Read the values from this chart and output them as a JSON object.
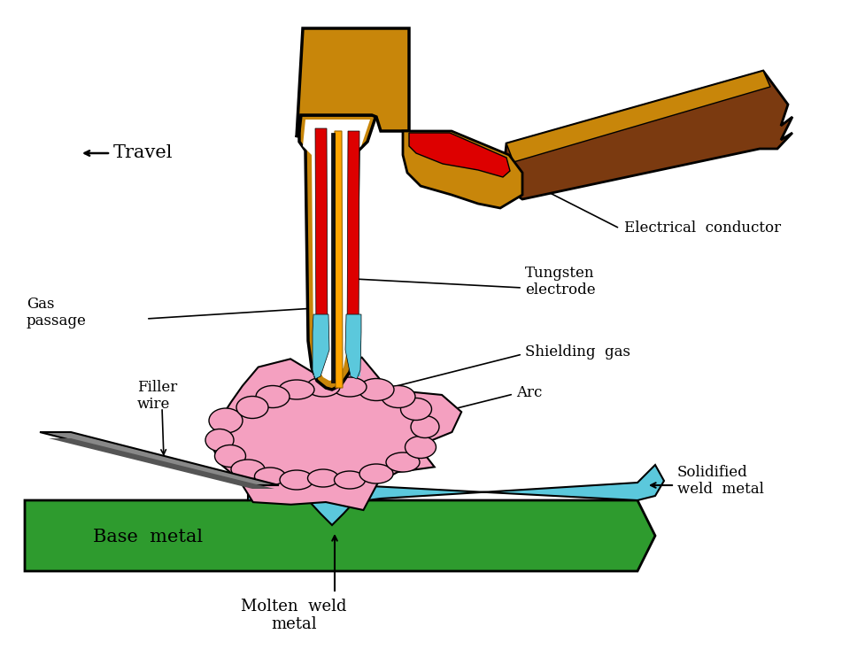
{
  "bg_color": "#ffffff",
  "colors": {
    "brown_light": "#C8860A",
    "brown_dark": "#7B3A10",
    "red": "#DD0000",
    "orange": "#FFA500",
    "white": "#FFFFFF",
    "cyan": "#5BC8DC",
    "pink": "#F4A0C0",
    "green": "#2E9B2E",
    "gray_wire": "#888888",
    "black": "#000000",
    "dark_brown_outline": "#3A1A00"
  },
  "labels": {
    "travel": "Travel",
    "gas_passage": "Gas\npassage",
    "filler_wire": "Filler\nwire",
    "electrical_conductor": "Electrical  conductor",
    "tungsten_electrode": "Tungsten\nelectrode",
    "shielding_gas": "Shielding  gas",
    "arc": "Arc",
    "solidified_weld_metal": "Solidified\nweld  metal",
    "base_metal": "Base  metal",
    "molten_weld_metal": "Molten  weld\nmetal"
  }
}
